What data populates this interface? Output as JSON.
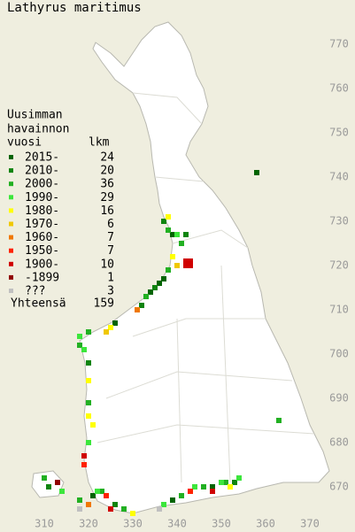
{
  "title": "Lathyrus maritimus",
  "legend": {
    "heading": [
      "Uusimman",
      "havainnon",
      "vuosi"
    ],
    "count_heading": "lkm",
    "rows": [
      {
        "label": "2015-",
        "count": 24,
        "color": "#006400",
        "squares": [
          [
            358,
            741
          ],
          [
            339,
            727
          ],
          [
            337,
            717
          ],
          [
            336,
            716
          ],
          [
            334,
            714
          ],
          [
            326,
            707
          ],
          [
            348,
            670
          ],
          [
            339,
            667
          ],
          [
            321,
            668
          ]
        ]
      },
      {
        "label": "2010-",
        "count": 20,
        "color": "#0f840f",
        "squares": [
          [
            337,
            730
          ],
          [
            342,
            727
          ],
          [
            335,
            715
          ],
          [
            332,
            711
          ],
          [
            320,
            698
          ],
          [
            353,
            671
          ],
          [
            326,
            666
          ],
          [
            311,
            670
          ]
        ]
      },
      {
        "label": "2000-",
        "count": 36,
        "color": "#22b022",
        "squares": [
          [
            338,
            728
          ],
          [
            341,
            725
          ],
          [
            338,
            719
          ],
          [
            333,
            713
          ],
          [
            320,
            705
          ],
          [
            318,
            702
          ],
          [
            320,
            689
          ],
          [
            363,
            685
          ],
          [
            346,
            670
          ],
          [
            351,
            671
          ],
          [
            341,
            668
          ],
          [
            328,
            665
          ],
          [
            323,
            669
          ],
          [
            318,
            667
          ],
          [
            310,
            672
          ]
        ]
      },
      {
        "label": "1990-",
        "count": 29,
        "color": "#3ce63c",
        "squares": [
          [
            340,
            727
          ],
          [
            318,
            704
          ],
          [
            319,
            701
          ],
          [
            320,
            680
          ],
          [
            344,
            670
          ],
          [
            350,
            671
          ],
          [
            354,
            672
          ],
          [
            337,
            666
          ],
          [
            322,
            669
          ],
          [
            314,
            669
          ]
        ]
      },
      {
        "label": "1980-",
        "count": 16,
        "color": "#ffff00",
        "squares": [
          [
            338,
            731
          ],
          [
            339,
            722
          ],
          [
            325,
            706
          ],
          [
            320,
            694
          ],
          [
            320,
            686
          ],
          [
            321,
            684
          ],
          [
            352,
            670
          ],
          [
            330,
            664
          ]
        ]
      },
      {
        "label": "1970-",
        "count": 6,
        "color": "#f0c800",
        "squares": [
          [
            340,
            720
          ],
          [
            324,
            705
          ]
        ]
      },
      {
        "label": "1960-",
        "count": 7,
        "color": "#f07800",
        "squares": [
          [
            331,
            710
          ],
          [
            320,
            666
          ]
        ]
      },
      {
        "label": "1950-",
        "count": 7,
        "color": "#ff2200",
        "squares": [
          [
            319,
            675
          ],
          [
            343,
            669
          ],
          [
            324,
            668
          ]
        ]
      },
      {
        "label": "1900-",
        "count": 10,
        "color": "#d00000",
        "squares": [
          [
            342,
            721
          ],
          [
            343,
            721
          ],
          [
            342,
            720
          ],
          [
            343,
            720
          ],
          [
            319,
            677
          ],
          [
            348,
            669
          ],
          [
            325,
            665
          ]
        ]
      },
      {
        "label": "-1899",
        "count": 1,
        "color": "#900000",
        "squares": [
          [
            313,
            671
          ]
        ]
      },
      {
        "label": "???",
        "count": 3,
        "color": "#c0c0c0",
        "squares": [
          [
            336,
            665
          ],
          [
            318,
            665
          ]
        ]
      }
    ],
    "total_label": "Yhteensä",
    "total": 159
  },
  "axes": {
    "xlim": [
      300,
      380
    ],
    "ylim": [
      660,
      780
    ],
    "xticks": [
      310,
      320,
      330,
      340,
      350,
      360,
      370
    ],
    "yticks": [
      670,
      680,
      690,
      700,
      710,
      720,
      730,
      740,
      750,
      760,
      770
    ]
  }
}
